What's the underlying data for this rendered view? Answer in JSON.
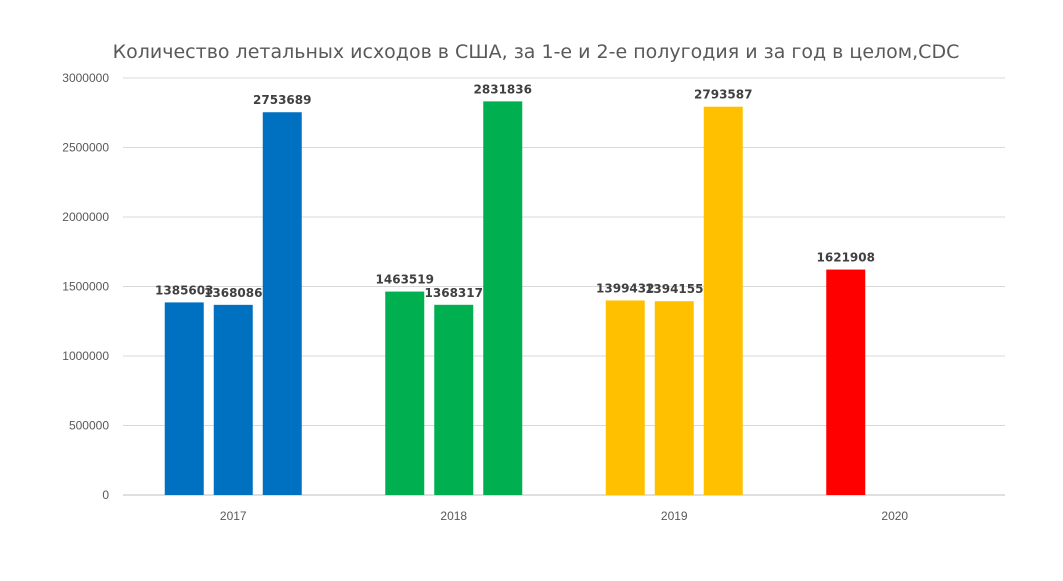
{
  "chart_data": {
    "type": "bar",
    "title": "Количество летальных исходов в США, за 1-е и 2-е полугодия и за год в целом,CDC",
    "xlabel": "",
    "ylabel": "",
    "ylim": [
      0,
      3000000
    ],
    "yticks": [
      "0",
      "500000",
      "1000000",
      "1500000",
      "2000000",
      "2500000",
      "3000000"
    ],
    "grid": true,
    "legend": "none",
    "categories": [
      "2017",
      "2018",
      "2019",
      "2020"
    ],
    "groups": [
      {
        "category": "2017",
        "color": "#0070C0",
        "values": [
          1385603,
          1368086,
          2753689
        ],
        "labels": [
          "1385603",
          "1368086",
          "2753689"
        ]
      },
      {
        "category": "2018",
        "color": "#00B050",
        "values": [
          1463519,
          1368317,
          2831836
        ],
        "labels": [
          "1463519",
          "1368317",
          "2831836"
        ]
      },
      {
        "category": "2019",
        "color": "#FFC000",
        "values": [
          1399432,
          1394155,
          2793587
        ],
        "labels": [
          "1399432",
          "1394155",
          "2793587"
        ]
      },
      {
        "category": "2020",
        "color": "#FF0000",
        "values": [
          1621908
        ],
        "labels": [
          "1621908"
        ]
      }
    ]
  }
}
